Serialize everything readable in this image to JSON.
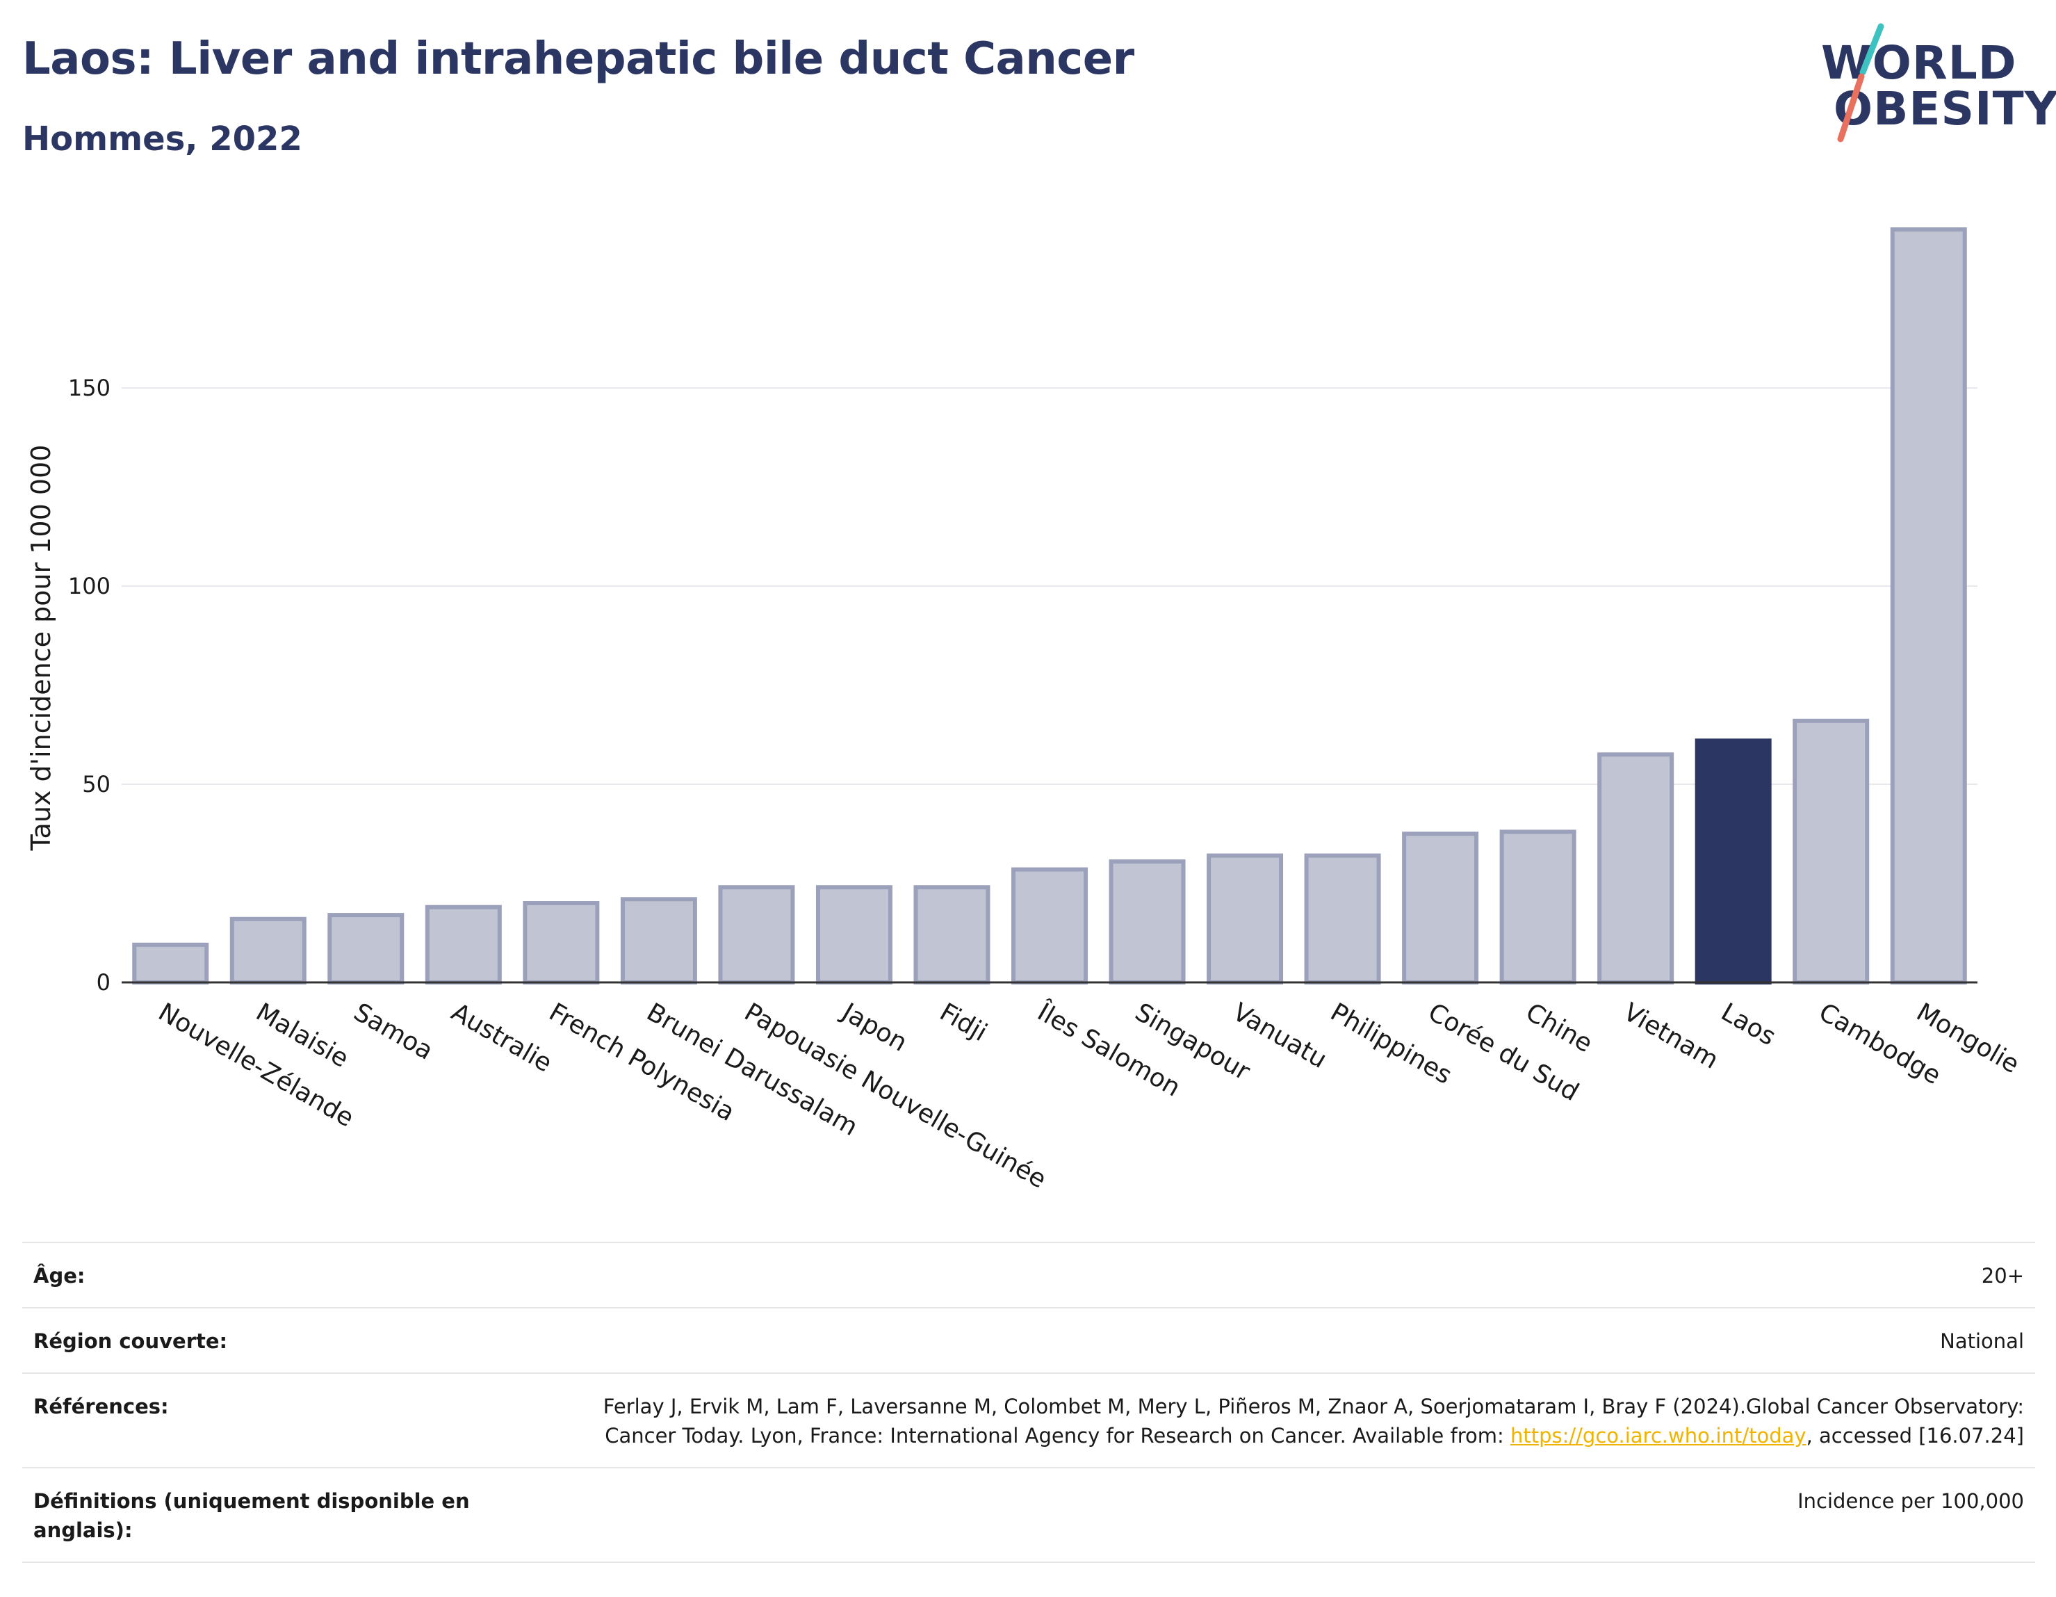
{
  "header": {
    "title": "Laos: Liver and intrahepatic bile duct Cancer",
    "subtitle": "Hommes, 2022"
  },
  "logo": {
    "line1": "WORLD",
    "line2": "OBESITY",
    "colors": {
      "text": "#2b3663",
      "slash_top": "#3ec1c1",
      "slash_bottom": "#e8705e"
    }
  },
  "chart_data": {
    "type": "bar",
    "ylabel": "Taux d'incidence pour 100 000",
    "xlabel": "",
    "ylim": [
      0,
      190
    ],
    "yticks": [
      0,
      50,
      100,
      150
    ],
    "grid": true,
    "categories": [
      "Nouvelle-Zélande",
      "Malaisie",
      "Samoa",
      "Australie",
      "French Polynesia",
      "Brunei Darussalam",
      "Papouasie Nouvelle-Guinée",
      "Japon",
      "Fidji",
      "Îles Salomon",
      "Singapour",
      "Vanuatu",
      "Philippines",
      "Corée du Sud",
      "Chine",
      "Vietnam",
      "Laos",
      "Cambodge",
      "Mongolie"
    ],
    "values": [
      9.5,
      16,
      17,
      19,
      20,
      21,
      24,
      24,
      24,
      28.5,
      30.5,
      32,
      32,
      37.5,
      38,
      57.5,
      61,
      66,
      190
    ],
    "highlight": "Laos",
    "colors": {
      "bar": "#c1c5d3",
      "bar_border": "#9ba1bb",
      "highlight": "#2b3663",
      "grid": "#e8e8ee",
      "axis": "#333333"
    }
  },
  "meta": {
    "rows": [
      {
        "key": "Âge:",
        "value": "20+"
      },
      {
        "key": "Région couverte:",
        "value": "National"
      },
      {
        "key": "Références:",
        "value_before": "Ferlay J, Ervik M, Lam F, Laversanne M, Colombet M, Mery L, Piñeros M, Znaor A, Soerjomataram I, Bray F (2024).Global Cancer Observatory: Cancer Today. Lyon, France: International Agency for Research on Cancer. Available from: ",
        "link": "https://gco.iarc.who.int/today",
        "value_after": ", accessed [16.07.24]"
      },
      {
        "key": "Définitions (uniquement disponible en anglais):",
        "value": "Incidence per 100,000"
      }
    ]
  }
}
